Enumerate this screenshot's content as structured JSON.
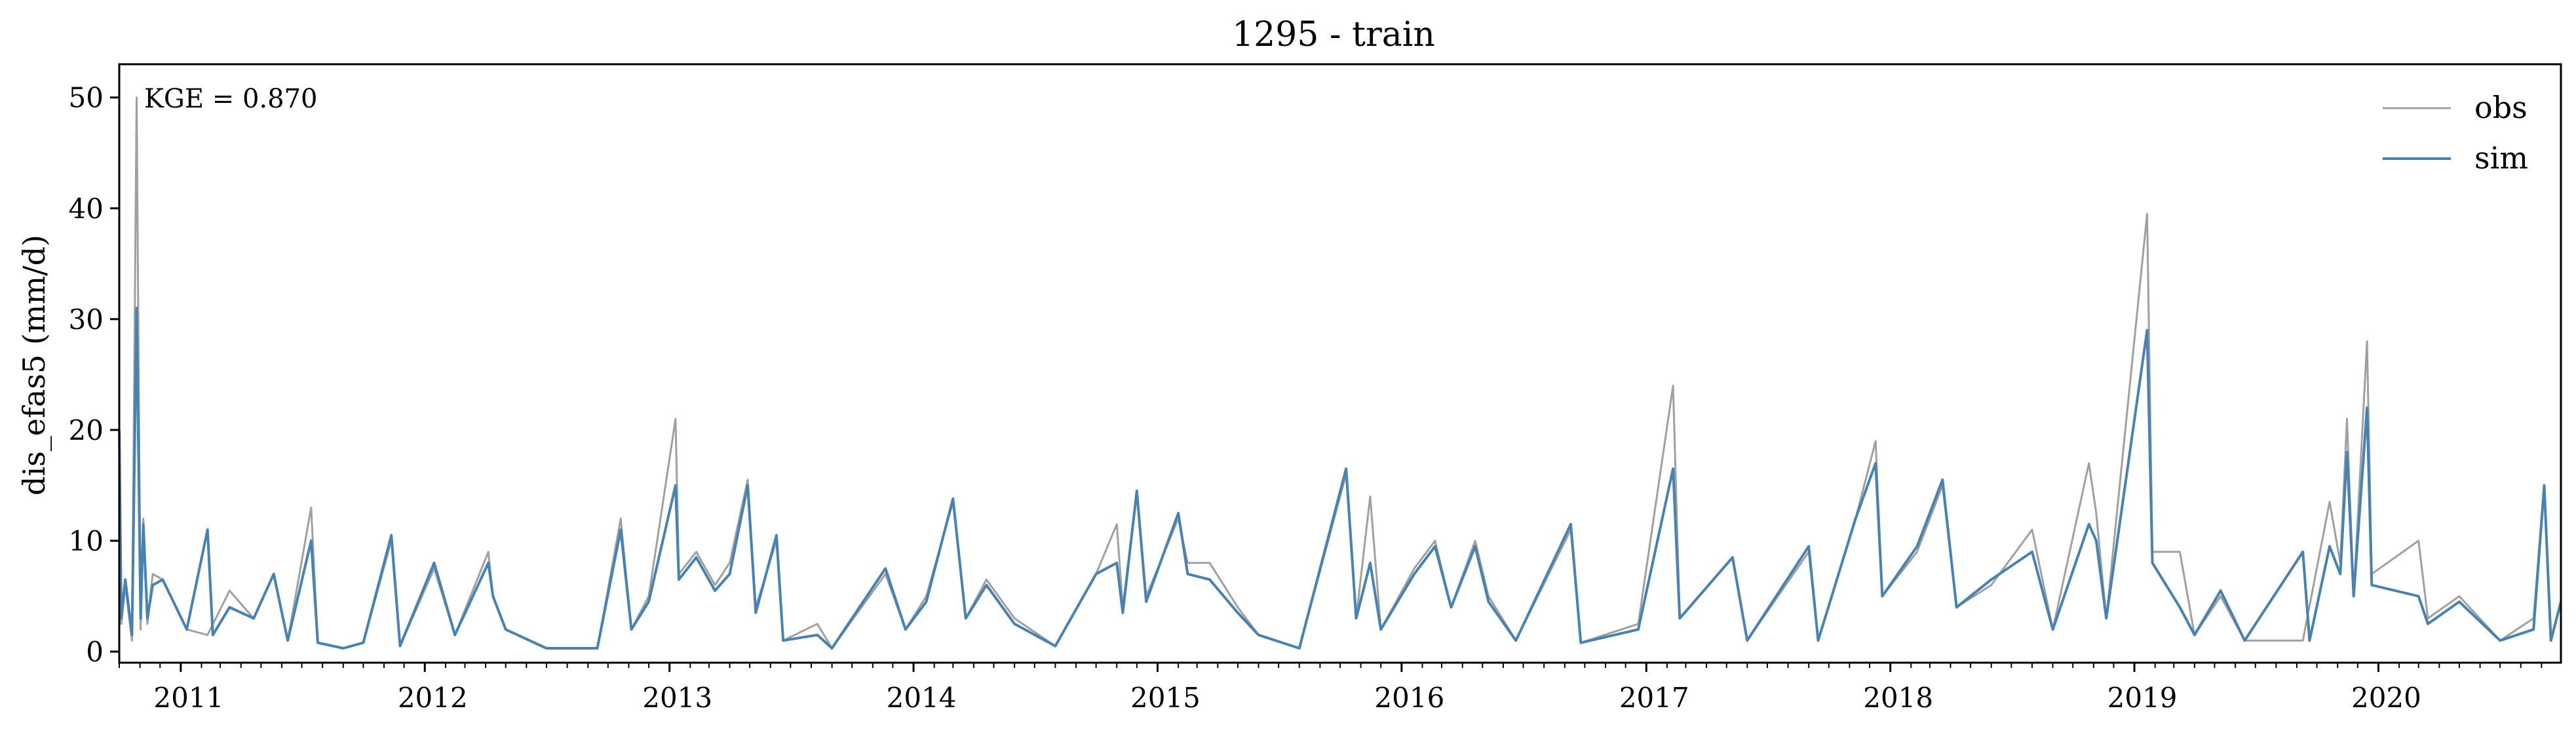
{
  "chart_data": {
    "type": "line",
    "title": "1295 - train",
    "xlabel": "",
    "ylabel": "dis_efas5 (mm/d)",
    "annotation": "KGE = 0.870",
    "xlim": [
      "2010-10-01",
      "2020-09-30"
    ],
    "ylim": [
      -1,
      53
    ],
    "yticks": [
      0,
      10,
      20,
      30,
      40,
      50
    ],
    "xticks": [
      "2011-01-01",
      "2012-01-01",
      "2013-01-01",
      "2014-01-01",
      "2015-01-01",
      "2016-01-01",
      "2017-01-01",
      "2018-01-01",
      "2019-01-01",
      "2020-01-01"
    ],
    "xtick_labels": [
      "2011",
      "2012",
      "2013",
      "2014",
      "2015",
      "2016",
      "2017",
      "2018",
      "2019",
      "2020"
    ],
    "grid": false,
    "legend_position": "top-right",
    "series": [
      {
        "name": "obs",
        "color": "#a0a0a0",
        "points": [
          [
            "2010-10-01",
            20.0
          ],
          [
            "2010-10-04",
            2.5
          ],
          [
            "2010-10-10",
            6.0
          ],
          [
            "2010-10-20",
            1.0
          ],
          [
            "2010-10-27",
            50.0
          ],
          [
            "2010-11-02",
            2.0
          ],
          [
            "2010-11-06",
            12.0
          ],
          [
            "2010-11-12",
            2.5
          ],
          [
            "2010-11-20",
            7.0
          ],
          [
            "2010-12-05",
            6.5
          ],
          [
            "2011-01-10",
            2.0
          ],
          [
            "2011-02-10",
            1.5
          ],
          [
            "2011-03-15",
            5.5
          ],
          [
            "2011-04-20",
            3.0
          ],
          [
            "2011-05-20",
            7.0
          ],
          [
            "2011-06-10",
            1.0
          ],
          [
            "2011-07-15",
            13.0
          ],
          [
            "2011-07-25",
            0.8
          ],
          [
            "2011-09-01",
            0.3
          ],
          [
            "2011-10-01",
            0.8
          ],
          [
            "2011-11-12",
            10.0
          ],
          [
            "2011-11-25",
            0.5
          ],
          [
            "2012-01-15",
            7.5
          ],
          [
            "2012-02-15",
            1.5
          ],
          [
            "2012-04-05",
            9.0
          ],
          [
            "2012-04-12",
            5.0
          ],
          [
            "2012-05-01",
            2.0
          ],
          [
            "2012-07-01",
            0.3
          ],
          [
            "2012-09-15",
            0.3
          ],
          [
            "2012-10-20",
            12.0
          ],
          [
            "2012-11-05",
            2.0
          ],
          [
            "2012-12-01",
            5.0
          ],
          [
            "2013-01-10",
            21.0
          ],
          [
            "2013-01-15",
            7.0
          ],
          [
            "2013-02-10",
            9.0
          ],
          [
            "2013-03-10",
            6.0
          ],
          [
            "2013-04-01",
            8.0
          ],
          [
            "2013-04-28",
            15.5
          ],
          [
            "2013-05-10",
            4.0
          ],
          [
            "2013-06-10",
            10.0
          ],
          [
            "2013-06-20",
            1.0
          ],
          [
            "2013-08-10",
            2.5
          ],
          [
            "2013-09-01",
            0.3
          ],
          [
            "2013-11-20",
            7.0
          ],
          [
            "2013-12-20",
            2.0
          ],
          [
            "2014-01-20",
            5.0
          ],
          [
            "2014-03-01",
            13.5
          ],
          [
            "2014-03-20",
            3.0
          ],
          [
            "2014-04-20",
            6.5
          ],
          [
            "2014-06-01",
            3.0
          ],
          [
            "2014-08-01",
            0.5
          ],
          [
            "2014-10-01",
            7.0
          ],
          [
            "2014-11-01",
            11.5
          ],
          [
            "2014-11-10",
            4.0
          ],
          [
            "2014-12-01",
            14.5
          ],
          [
            "2014-12-15",
            5.0
          ],
          [
            "2015-02-01",
            12.0
          ],
          [
            "2015-02-15",
            8.0
          ],
          [
            "2015-03-20",
            8.0
          ],
          [
            "2015-05-01",
            4.0
          ],
          [
            "2015-06-01",
            1.5
          ],
          [
            "2015-08-01",
            0.3
          ],
          [
            "2015-10-10",
            16.0
          ],
          [
            "2015-10-25",
            3.0
          ],
          [
            "2015-11-15",
            14.0
          ],
          [
            "2015-12-01",
            2.0
          ],
          [
            "2016-01-20",
            7.5
          ],
          [
            "2016-02-20",
            10.0
          ],
          [
            "2016-03-15",
            4.0
          ],
          [
            "2016-04-20",
            10.0
          ],
          [
            "2016-05-10",
            5.0
          ],
          [
            "2016-06-20",
            1.0
          ],
          [
            "2016-09-10",
            11.0
          ],
          [
            "2016-09-25",
            0.8
          ],
          [
            "2016-12-20",
            2.5
          ],
          [
            "2017-02-10",
            24.0
          ],
          [
            "2017-02-20",
            3.0
          ],
          [
            "2017-05-10",
            8.5
          ],
          [
            "2017-06-01",
            1.0
          ],
          [
            "2017-09-01",
            9.0
          ],
          [
            "2017-09-15",
            1.0
          ],
          [
            "2017-11-10",
            12.0
          ],
          [
            "2017-12-10",
            19.0
          ],
          [
            "2017-12-20",
            5.0
          ],
          [
            "2018-02-10",
            9.0
          ],
          [
            "2018-03-20",
            15.0
          ],
          [
            "2018-04-10",
            4.0
          ],
          [
            "2018-06-01",
            6.0
          ],
          [
            "2018-08-01",
            11.0
          ],
          [
            "2018-09-01",
            2.0
          ],
          [
            "2018-10-25",
            17.0
          ],
          [
            "2018-11-05",
            12.5
          ],
          [
            "2018-11-20",
            3.0
          ],
          [
            "2019-01-20",
            39.5
          ],
          [
            "2019-01-28",
            9.0
          ],
          [
            "2019-03-10",
            9.0
          ],
          [
            "2019-04-01",
            1.5
          ],
          [
            "2019-05-10",
            5.0
          ],
          [
            "2019-06-15",
            1.0
          ],
          [
            "2019-09-10",
            1.0
          ],
          [
            "2019-10-20",
            13.5
          ],
          [
            "2019-11-05",
            8.0
          ],
          [
            "2019-11-15",
            21.0
          ],
          [
            "2019-11-25",
            5.0
          ],
          [
            "2019-12-15",
            28.0
          ],
          [
            "2019-12-22",
            7.0
          ],
          [
            "2020-03-01",
            10.0
          ],
          [
            "2020-03-15",
            3.0
          ],
          [
            "2020-05-01",
            5.0
          ],
          [
            "2020-07-01",
            1.0
          ],
          [
            "2020-08-20",
            3.0
          ],
          [
            "2020-09-05",
            15.0
          ],
          [
            "2020-09-15",
            1.0
          ],
          [
            "2020-09-30",
            4.5
          ]
        ]
      },
      {
        "name": "sim",
        "color": "#4682b4",
        "points": [
          [
            "2010-10-01",
            20.0
          ],
          [
            "2010-10-04",
            3.0
          ],
          [
            "2010-10-10",
            6.5
          ],
          [
            "2010-10-20",
            1.5
          ],
          [
            "2010-10-27",
            31.0
          ],
          [
            "2010-11-02",
            3.0
          ],
          [
            "2010-11-06",
            11.5
          ],
          [
            "2010-11-12",
            3.0
          ],
          [
            "2010-11-20",
            6.0
          ],
          [
            "2010-12-05",
            6.5
          ],
          [
            "2011-01-10",
            2.0
          ],
          [
            "2011-02-10",
            11.0
          ],
          [
            "2011-02-18",
            1.5
          ],
          [
            "2011-03-15",
            4.0
          ],
          [
            "2011-04-20",
            3.0
          ],
          [
            "2011-05-20",
            7.0
          ],
          [
            "2011-06-10",
            1.0
          ],
          [
            "2011-07-15",
            10.0
          ],
          [
            "2011-07-25",
            0.8
          ],
          [
            "2011-09-01",
            0.3
          ],
          [
            "2011-10-01",
            0.8
          ],
          [
            "2011-11-12",
            10.5
          ],
          [
            "2011-11-25",
            0.5
          ],
          [
            "2012-01-15",
            8.0
          ],
          [
            "2012-02-15",
            1.5
          ],
          [
            "2012-04-05",
            8.0
          ],
          [
            "2012-04-12",
            5.0
          ],
          [
            "2012-05-01",
            2.0
          ],
          [
            "2012-07-01",
            0.3
          ],
          [
            "2012-09-15",
            0.3
          ],
          [
            "2012-10-20",
            11.0
          ],
          [
            "2012-11-05",
            2.0
          ],
          [
            "2012-12-01",
            4.5
          ],
          [
            "2013-01-10",
            15.0
          ],
          [
            "2013-01-15",
            6.5
          ],
          [
            "2013-02-10",
            8.5
          ],
          [
            "2013-03-10",
            5.5
          ],
          [
            "2013-04-01",
            7.0
          ],
          [
            "2013-04-28",
            15.0
          ],
          [
            "2013-05-10",
            3.5
          ],
          [
            "2013-06-10",
            10.5
          ],
          [
            "2013-06-20",
            1.0
          ],
          [
            "2013-08-10",
            1.5
          ],
          [
            "2013-09-01",
            0.3
          ],
          [
            "2013-11-20",
            7.5
          ],
          [
            "2013-12-20",
            2.0
          ],
          [
            "2014-01-20",
            4.5
          ],
          [
            "2014-03-01",
            13.8
          ],
          [
            "2014-03-20",
            3.0
          ],
          [
            "2014-04-20",
            6.0
          ],
          [
            "2014-06-01",
            2.5
          ],
          [
            "2014-08-01",
            0.5
          ],
          [
            "2014-10-01",
            7.0
          ],
          [
            "2014-11-01",
            8.0
          ],
          [
            "2014-11-10",
            3.5
          ],
          [
            "2014-12-01",
            14.5
          ],
          [
            "2014-12-15",
            4.5
          ],
          [
            "2015-02-01",
            12.5
          ],
          [
            "2015-02-15",
            7.0
          ],
          [
            "2015-03-20",
            6.5
          ],
          [
            "2015-05-01",
            3.5
          ],
          [
            "2015-06-01",
            1.5
          ],
          [
            "2015-08-01",
            0.3
          ],
          [
            "2015-10-10",
            16.5
          ],
          [
            "2015-10-25",
            3.0
          ],
          [
            "2015-11-15",
            8.0
          ],
          [
            "2015-12-01",
            2.0
          ],
          [
            "2016-01-20",
            7.0
          ],
          [
            "2016-02-20",
            9.5
          ],
          [
            "2016-03-15",
            4.0
          ],
          [
            "2016-04-20",
            9.5
          ],
          [
            "2016-05-10",
            4.5
          ],
          [
            "2016-06-20",
            1.0
          ],
          [
            "2016-09-10",
            11.5
          ],
          [
            "2016-09-25",
            0.8
          ],
          [
            "2016-12-20",
            2.0
          ],
          [
            "2017-02-10",
            16.5
          ],
          [
            "2017-02-20",
            3.0
          ],
          [
            "2017-05-10",
            8.5
          ],
          [
            "2017-06-01",
            1.0
          ],
          [
            "2017-09-01",
            9.5
          ],
          [
            "2017-09-15",
            1.0
          ],
          [
            "2017-11-10",
            12.0
          ],
          [
            "2017-12-10",
            17.0
          ],
          [
            "2017-12-20",
            5.0
          ],
          [
            "2018-02-10",
            9.5
          ],
          [
            "2018-03-20",
            15.5
          ],
          [
            "2018-04-10",
            4.0
          ],
          [
            "2018-06-01",
            6.5
          ],
          [
            "2018-08-01",
            9.0
          ],
          [
            "2018-09-01",
            2.0
          ],
          [
            "2018-10-25",
            11.5
          ],
          [
            "2018-11-05",
            10.0
          ],
          [
            "2018-11-20",
            3.0
          ],
          [
            "2019-01-20",
            29.0
          ],
          [
            "2019-01-28",
            8.0
          ],
          [
            "2019-03-10",
            4.0
          ],
          [
            "2019-04-01",
            1.5
          ],
          [
            "2019-05-10",
            5.5
          ],
          [
            "2019-06-15",
            1.0
          ],
          [
            "2019-09-10",
            9.0
          ],
          [
            "2019-09-20",
            1.0
          ],
          [
            "2019-10-20",
            9.5
          ],
          [
            "2019-11-05",
            7.0
          ],
          [
            "2019-11-15",
            18.0
          ],
          [
            "2019-11-25",
            5.0
          ],
          [
            "2019-12-15",
            22.0
          ],
          [
            "2019-12-22",
            6.0
          ],
          [
            "2020-03-01",
            5.0
          ],
          [
            "2020-03-15",
            2.5
          ],
          [
            "2020-05-01",
            4.5
          ],
          [
            "2020-07-01",
            1.0
          ],
          [
            "2020-08-20",
            2.0
          ],
          [
            "2020-09-05",
            15.0
          ],
          [
            "2020-09-15",
            1.0
          ],
          [
            "2020-09-30",
            4.5
          ]
        ]
      }
    ]
  }
}
